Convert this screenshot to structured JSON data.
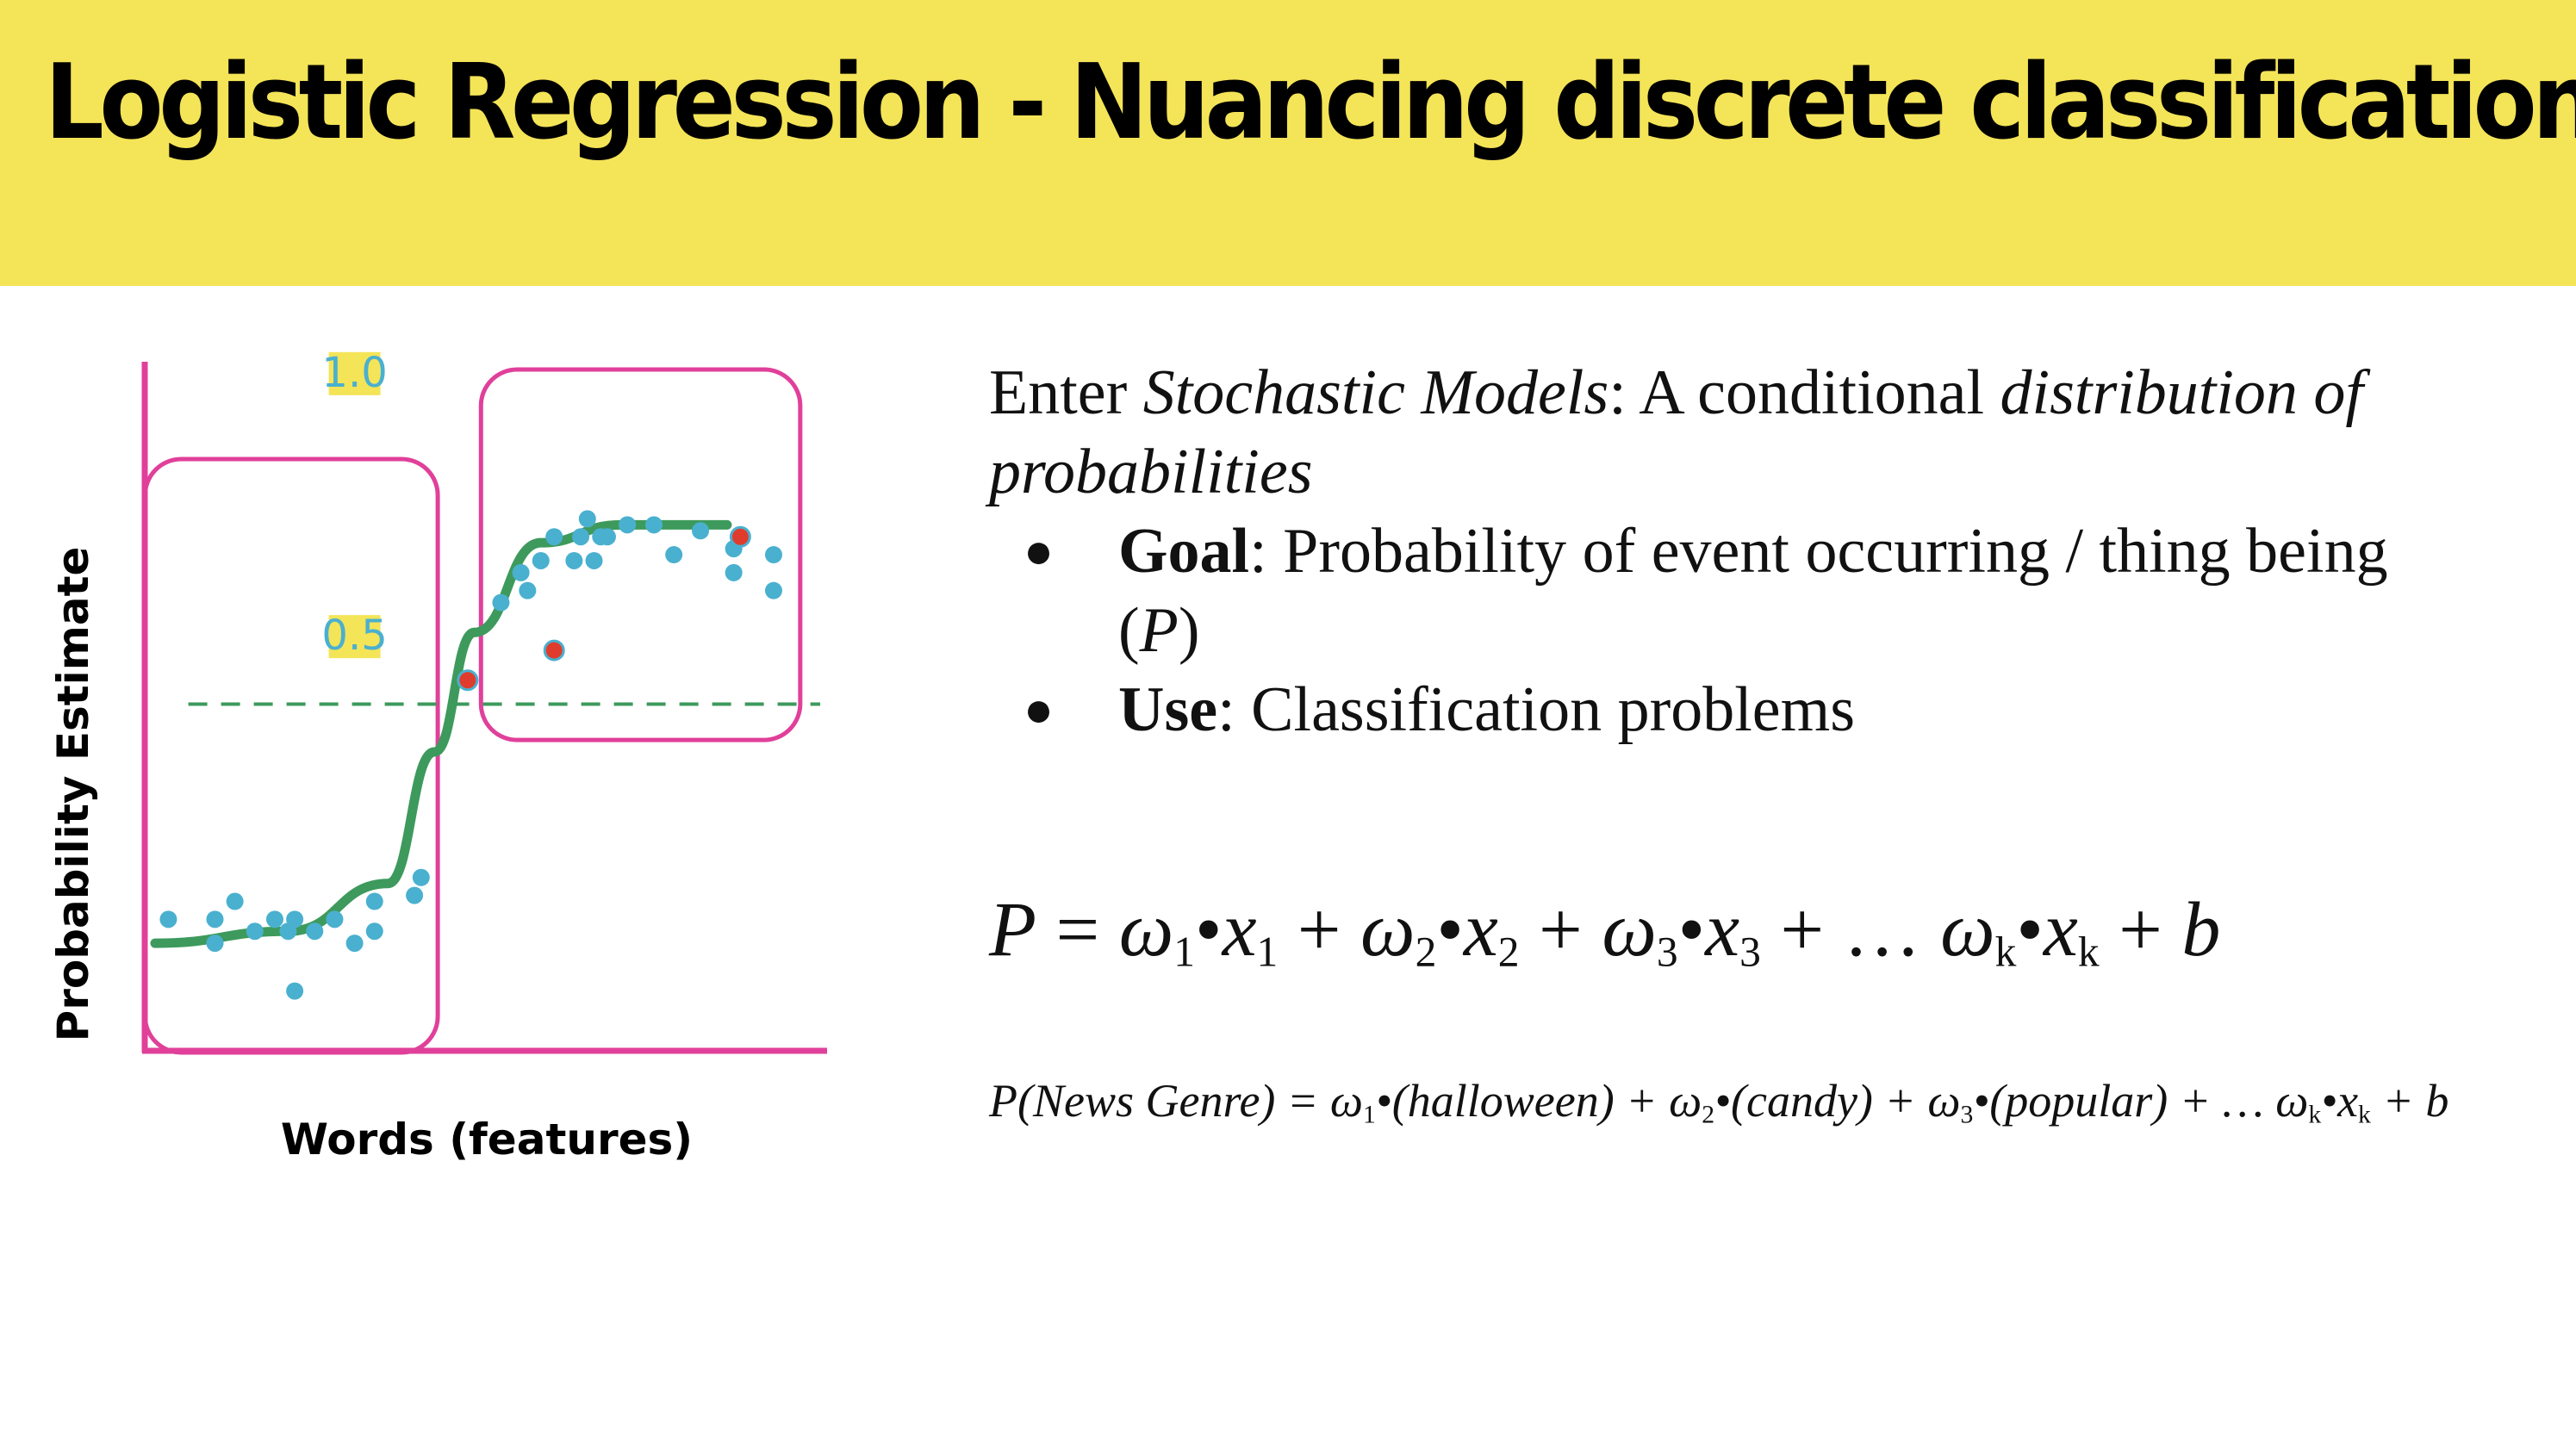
{
  "title": "Logistic Regression - Nuancing discrete classification",
  "chart": {
    "ylabel": "Probability Estimate",
    "xlabel": "Words (features)",
    "tick_high": "1.0",
    "tick_mid": "0.5"
  },
  "chart_data": {
    "type": "scatter",
    "title": "",
    "xlabel": "Words (features)",
    "ylabel": "Probability Estimate",
    "xlim": [
      0,
      100
    ],
    "ylim": [
      0,
      1.15
    ],
    "y_ticks": [
      0.5,
      1.0
    ],
    "threshold": 0.5,
    "colors": {
      "curve": "#3d9a5c",
      "points": "#4ab0cf",
      "misclassified": "#e03c2d",
      "axes": "#e0409a",
      "boxes": "#e0409a",
      "threshold_line": "#3d9a5c",
      "tick_highlight": "#f4e457",
      "tick_text": "#4ab0cf"
    },
    "series": [
      {
        "values": [
          [
            2,
            0.22
          ],
          [
            9,
            0.18
          ],
          [
            9,
            0.22
          ],
          [
            12,
            0.25
          ],
          [
            15,
            0.2
          ],
          [
            18,
            0.22
          ],
          [
            20,
            0.2
          ],
          [
            21,
            0.1
          ],
          [
            21,
            0.22
          ],
          [
            24,
            0.2
          ],
          [
            27,
            0.22
          ],
          [
            30,
            0.18
          ],
          [
            33,
            0.2
          ],
          [
            33,
            0.25
          ],
          [
            39,
            0.26
          ],
          [
            40,
            0.29
          ],
          [
            52,
            0.75
          ],
          [
            55,
            0.8
          ],
          [
            56,
            0.77
          ],
          [
            58,
            0.82
          ],
          [
            60,
            0.86
          ],
          [
            63,
            0.82
          ],
          [
            64,
            0.86
          ],
          [
            65,
            0.89
          ],
          [
            66,
            0.82
          ],
          [
            67,
            0.86
          ],
          [
            68,
            0.86
          ],
          [
            71,
            0.88
          ],
          [
            75,
            0.88
          ],
          [
            78,
            0.83
          ],
          [
            82,
            0.87
          ],
          [
            87,
            0.84
          ],
          [
            87,
            0.8
          ],
          [
            93,
            0.83
          ],
          [
            93,
            0.77
          ]
        ]
      },
      {
        "values": [
          [
            47,
            0.62
          ],
          [
            60,
            0.67
          ],
          [
            88,
            0.86
          ]
        ]
      }
    ],
    "curve": [
      [
        0,
        0.18
      ],
      [
        20,
        0.2
      ],
      [
        35,
        0.28
      ],
      [
        42,
        0.5
      ],
      [
        48,
        0.7
      ],
      [
        58,
        0.85
      ],
      [
        70,
        0.88
      ],
      [
        86,
        0.88
      ]
    ]
  },
  "text": {
    "enter": "Enter ",
    "stochastic": "Stochastic Models",
    "colon_desc": ": A conditional ",
    "distribution": "distribution of probabilities",
    "goal_label": "Goal",
    "goal_text": ": Probability of event occurring / thing being (",
    "goal_p": "P",
    "goal_close": ")",
    "use_label": "Use",
    "use_text": ": Classification problems",
    "bullet": "●"
  },
  "eq1": {
    "lhs": "P",
    "eq": " = ",
    "w": "ω",
    "x": "x",
    "dot": "•",
    "plus": " + ",
    "s1": "1",
    "s2": "2",
    "s3": "3",
    "sk": "k",
    "ellipsis": " + … ",
    "b": "b"
  },
  "eq2": {
    "lhs": "P(News Genre) = ",
    "t1": "(halloween) + ",
    "t2": "(candy) + ",
    "t3": "(popular) + … ",
    "tail": " + b"
  }
}
